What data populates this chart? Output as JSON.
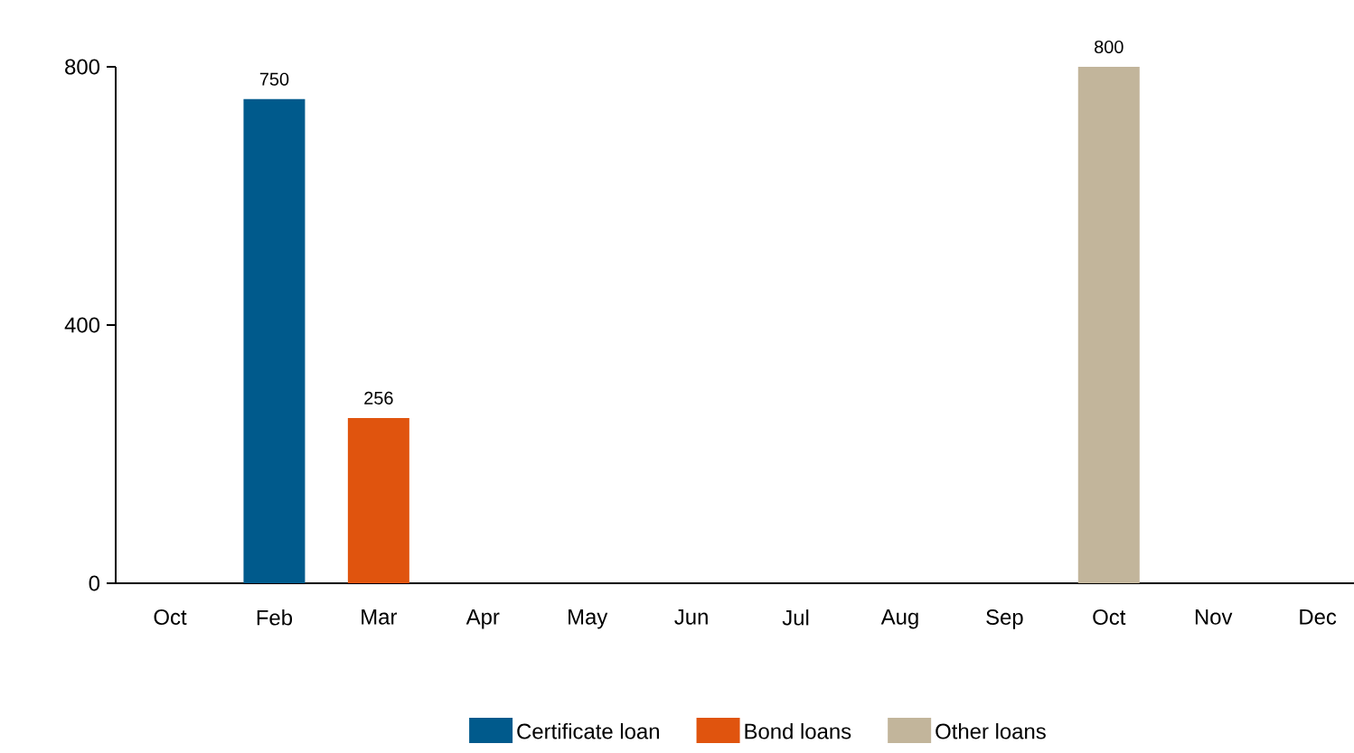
{
  "chart_data": {
    "type": "bar",
    "categories": [
      "Oct",
      "Feb",
      "Mar",
      "Apr",
      "May",
      "Jun",
      "Jul",
      "Aug",
      "Sep",
      "Oct",
      "Nov",
      "Dec"
    ],
    "series": [
      {
        "name": "Certificate loan",
        "color": "#005a8c",
        "values": [
          null,
          750,
          null,
          null,
          null,
          null,
          null,
          null,
          null,
          null,
          null,
          null
        ]
      },
      {
        "name": "Bond loans",
        "color": "#e0540e",
        "values": [
          null,
          null,
          256,
          null,
          null,
          null,
          null,
          null,
          null,
          null,
          null,
          null
        ]
      },
      {
        "name": "Other loans",
        "color": "#c2b59b",
        "values": [
          null,
          null,
          null,
          null,
          null,
          null,
          null,
          null,
          null,
          800,
          null,
          null
        ]
      }
    ],
    "ylim": [
      0,
      800
    ],
    "yticks": [
      0,
      400,
      800
    ],
    "data_labels": true,
    "legend": "bottom"
  }
}
